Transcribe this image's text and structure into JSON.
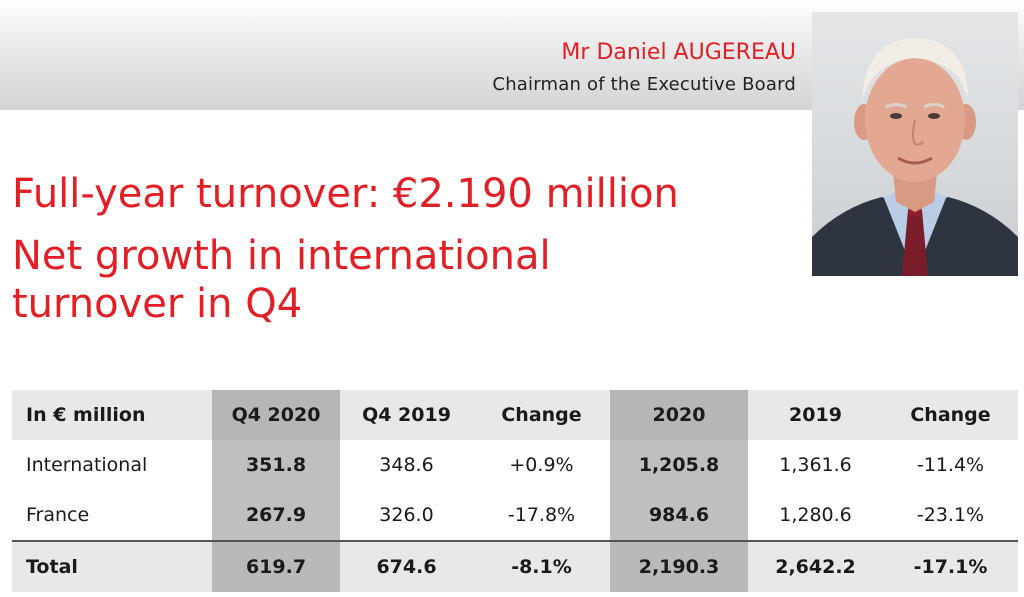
{
  "header": {
    "name": "Mr Daniel AUGEREAU",
    "role": "Chairman of the Executive Board"
  },
  "headline": {
    "line1": "Full-year turnover: €2.190 million",
    "line2a": "Net growth in international",
    "line2b": "turnover in Q4"
  },
  "table": {
    "columns": [
      "In € million",
      "Q4 2020",
      "Q4 2019",
      "Change",
      "2020",
      "2019",
      "Change"
    ],
    "rows": [
      [
        "International",
        "351.8",
        "348.6",
        "+0.9%",
        "1,205.8",
        "1,361.6",
        "-11.4%"
      ],
      [
        "France",
        "267.9",
        "326.0",
        "-17.8%",
        "984.6",
        "1,280.6",
        "-23.1%"
      ],
      [
        "Total",
        "619.7",
        "674.6",
        "-8.1%",
        "2,190.3",
        "2,642.2",
        "-17.1%"
      ]
    ]
  },
  "colors": {
    "accent_red": "#e31e24",
    "header_gray": "#e8e8e8",
    "highlight_gray": "#bfbfbf"
  }
}
